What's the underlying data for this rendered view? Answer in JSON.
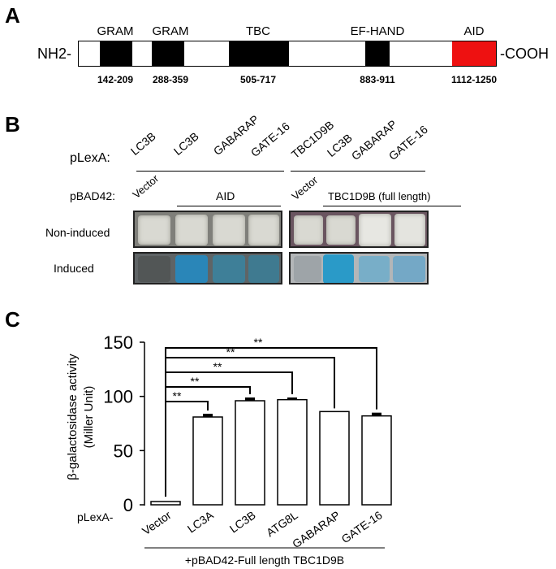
{
  "panelA": {
    "letter": "A",
    "n_term": "NH2-",
    "c_term": "-COOH",
    "domains": [
      {
        "name": "GRAM",
        "range": "142-209",
        "color": "#000000"
      },
      {
        "name": "GRAM",
        "range": "288-359",
        "color": "#000000"
      },
      {
        "name": "TBC",
        "range": "505-717",
        "color": "#000000"
      },
      {
        "name": "EF-HAND",
        "range": "883-911",
        "color": "#000000"
      },
      {
        "name": "AID",
        "range": "1112-1250",
        "color": "#ee1111"
      }
    ]
  },
  "panelB": {
    "letter": "B",
    "plexa_label": "pLexA:",
    "pbad_label": "pBAD42:",
    "left_cols": [
      "LC3B",
      "LC3B",
      "GABARAP",
      "GATE-16"
    ],
    "right_cols": [
      "TBC1D9B",
      "LC3B",
      "GABARAP",
      "GATE-16"
    ],
    "left_vector": "Vector",
    "left_group": "AID",
    "right_vector": "Vector",
    "right_group": "TBC1D9B (full length)",
    "row_noninduced": "Non-induced",
    "row_induced": "Induced"
  },
  "panelC": {
    "letter": "C",
    "ylabel_line1": "β-galactosidase activity",
    "ylabel_line2": "(Miller Unit)",
    "plexa_label": "pLexA-",
    "xlabel": "+pBAD42-Full length TBC1D9B",
    "significance": "**"
  },
  "chart_data": {
    "type": "bar",
    "categories": [
      "Vector",
      "LC3A",
      "LC3B",
      "ATG8L",
      "GABARAP",
      "GATE-16"
    ],
    "values": [
      3,
      81,
      96,
      97,
      86,
      82
    ],
    "errors": [
      0,
      3,
      3,
      2,
      0,
      3
    ],
    "ylim": [
      0,
      150
    ],
    "yticks": [
      0,
      50,
      100,
      150
    ],
    "ylabel": "β-galactosidase activity (Miller Unit)",
    "xlabel": "+pBAD42-Full length TBC1D9B",
    "comparisons": [
      {
        "from": "Vector",
        "to": "LC3A",
        "label": "**"
      },
      {
        "from": "Vector",
        "to": "LC3B",
        "label": "**"
      },
      {
        "from": "Vector",
        "to": "ATG8L",
        "label": "**"
      },
      {
        "from": "Vector",
        "to": "GABARAP",
        "label": "**"
      },
      {
        "from": "Vector",
        "to": "GATE-16",
        "label": "**"
      }
    ],
    "grid": false
  }
}
